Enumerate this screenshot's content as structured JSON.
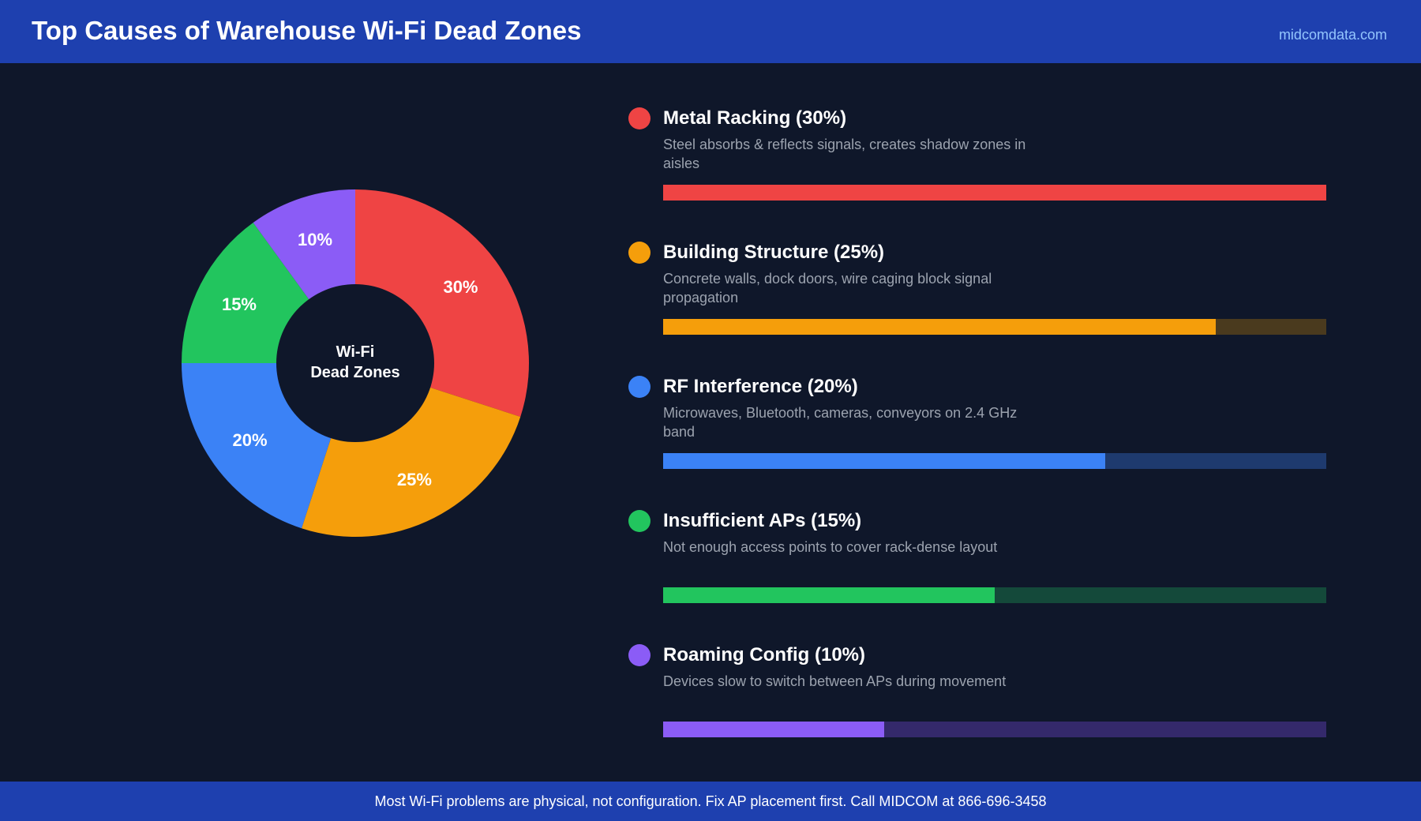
{
  "header": {
    "title": "Top Causes of Warehouse Wi-Fi Dead Zones",
    "site": "midcomdata.com"
  },
  "footer": {
    "message": "Most Wi-Fi problems are physical, not configuration. Fix AP placement first. Call MIDCOM at 866-696-3458"
  },
  "chart_data": {
    "type": "pie",
    "variant": "donut",
    "center_label": [
      "Wi-Fi",
      "Dead Zones"
    ],
    "categories": [
      "Metal Racking",
      "Building Structure",
      "RF Interference",
      "Insufficient APs",
      "Roaming Config"
    ],
    "values": [
      30,
      25,
      20,
      15,
      10
    ],
    "slice_labels": [
      "30%",
      "25%",
      "20%",
      "15%",
      "10%"
    ],
    "colors": [
      "#ef4444",
      "#f59e0b",
      "#3b82f6",
      "#22c55e",
      "#8b5cf6"
    ],
    "track_colors": [
      "#3f1d1d",
      "#4a3a1e",
      "#1e3a6e",
      "#14493a",
      "#34296b"
    ],
    "legend": [
      {
        "label": "Metal Racking (30%)",
        "description": "Steel absorbs & reflects signals, creates shadow zones in aisles",
        "bar_fraction": 1.0
      },
      {
        "label": "Building Structure (25%)",
        "description": "Concrete walls, dock doors, wire caging block signal propagation",
        "bar_fraction": 0.833
      },
      {
        "label": "RF Interference (20%)",
        "description": "Microwaves, Bluetooth, cameras, conveyors on 2.4 GHz band",
        "bar_fraction": 0.667
      },
      {
        "label": "Insufficient APs (15%)",
        "description": "Not enough access points to cover rack-dense layout",
        "bar_fraction": 0.5
      },
      {
        "label": "Roaming Config (10%)",
        "description": "Devices slow to switch between APs during movement",
        "bar_fraction": 0.333
      }
    ]
  }
}
